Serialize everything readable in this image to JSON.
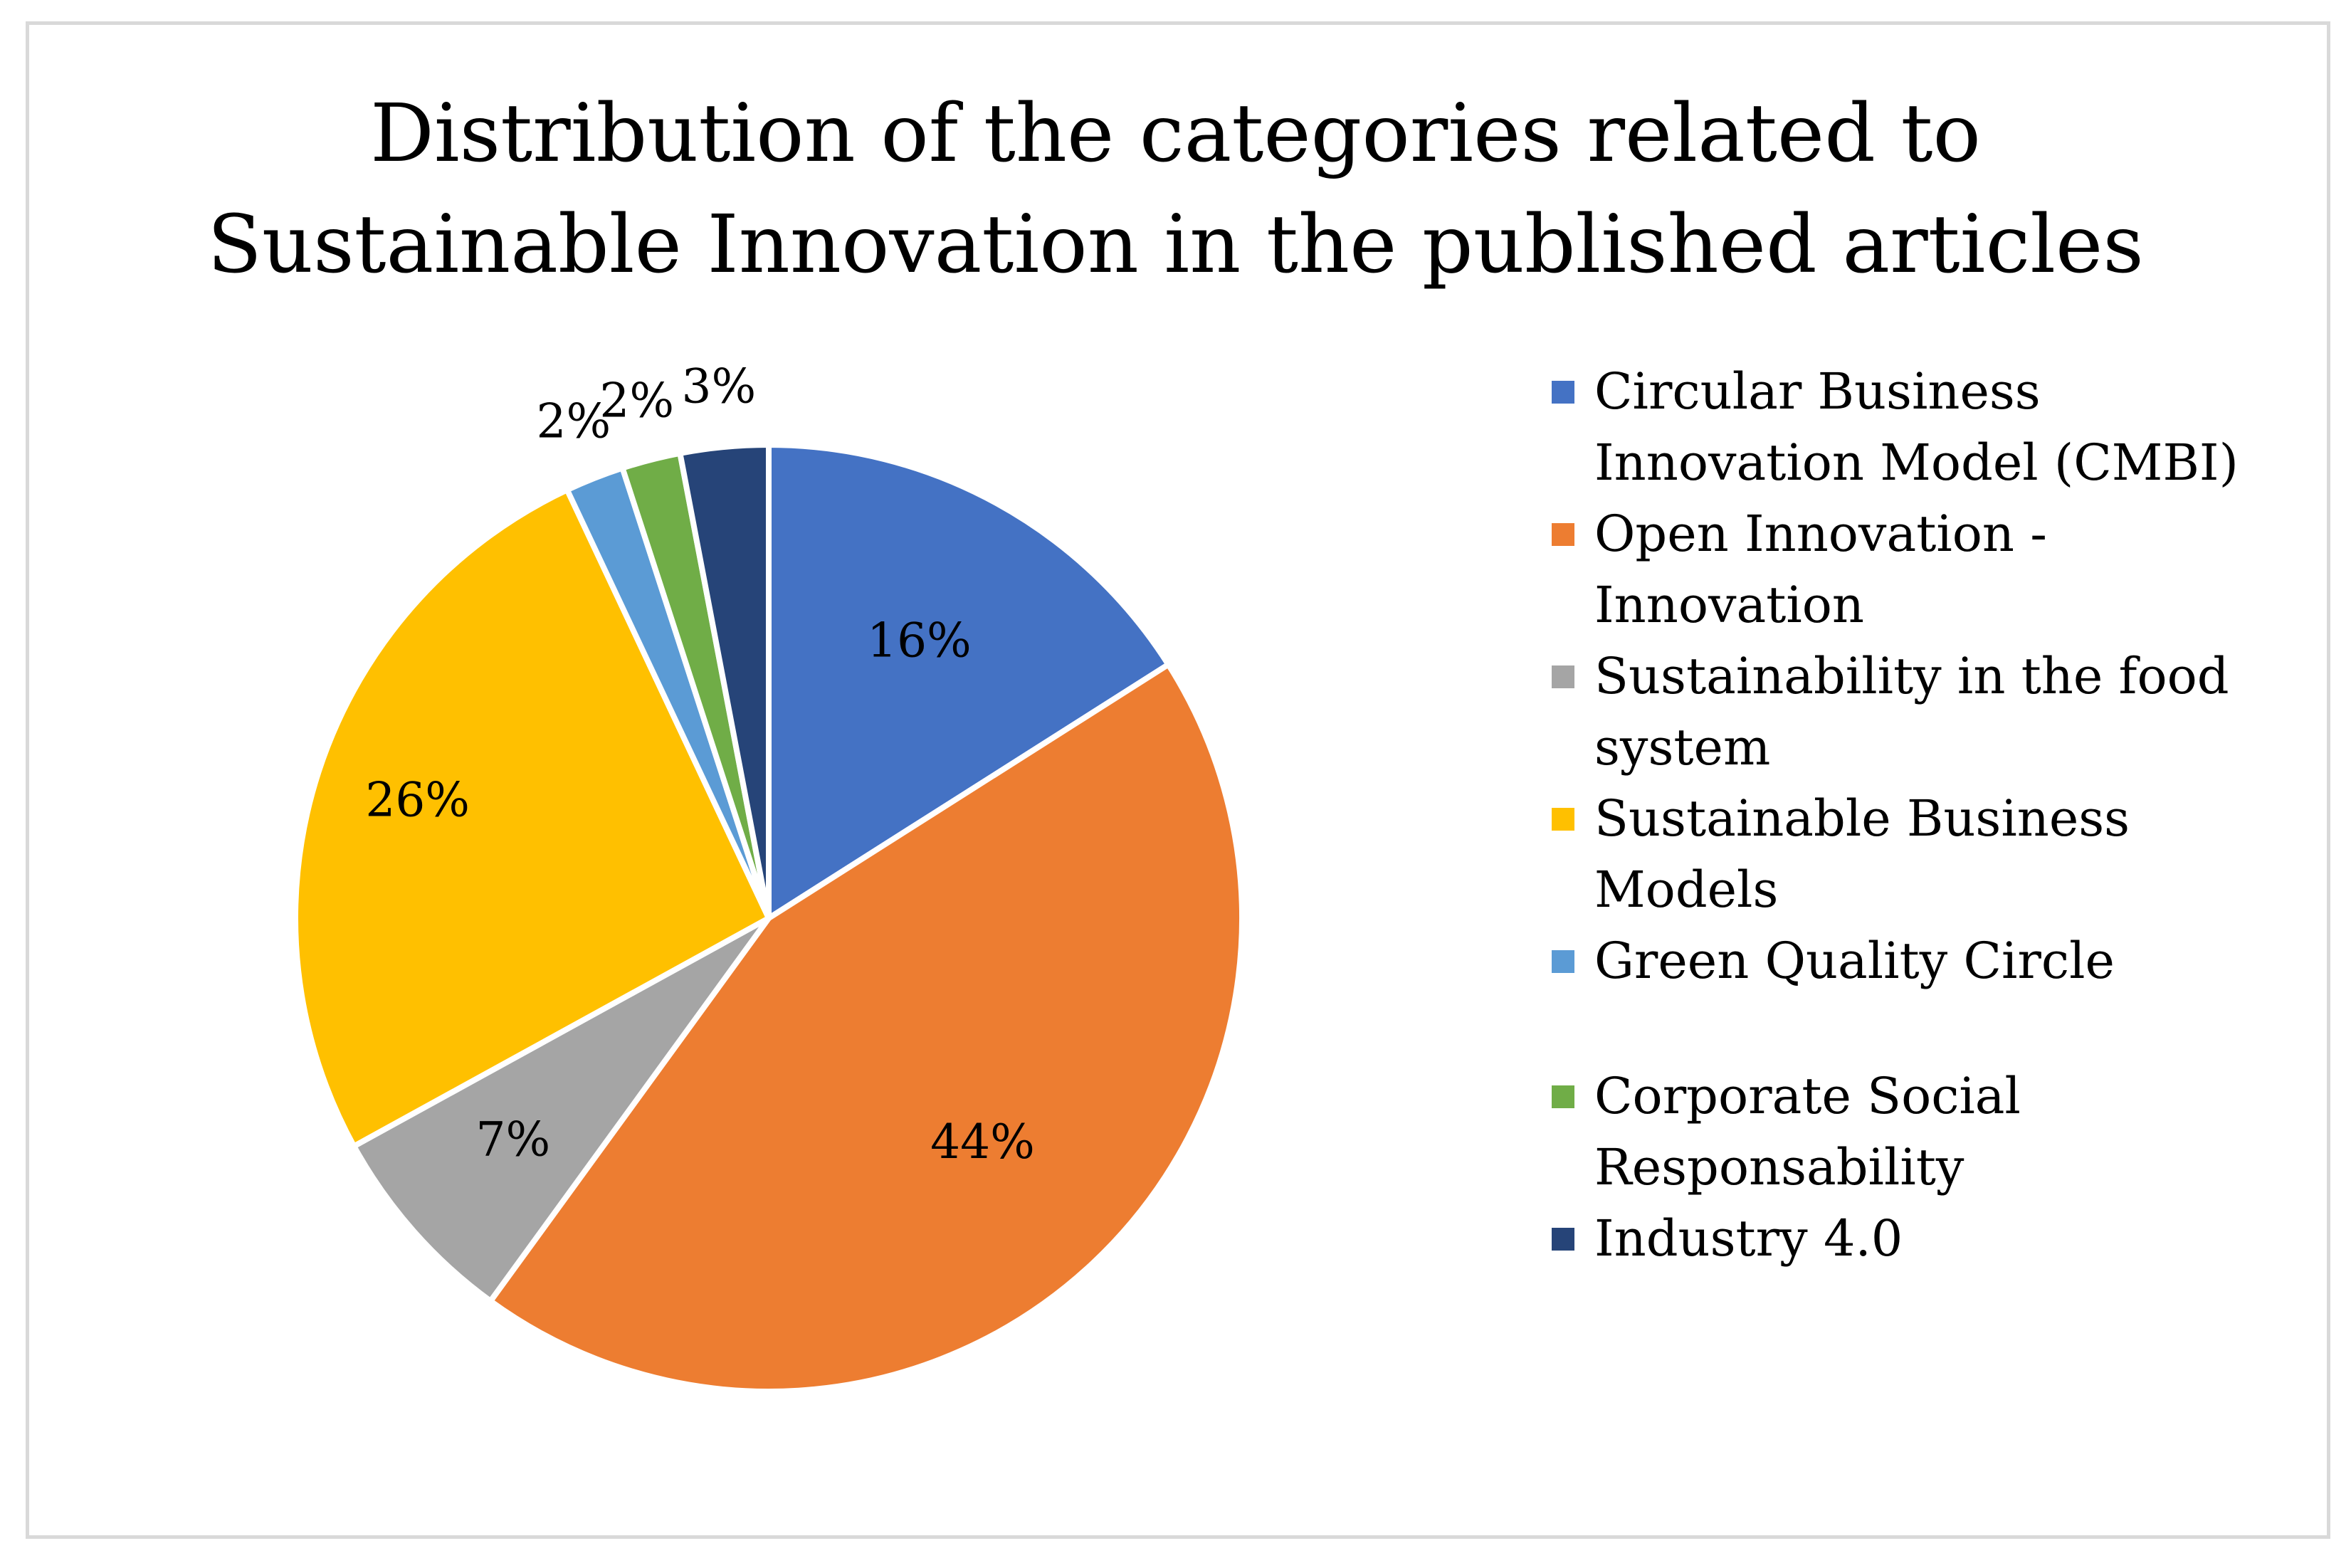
{
  "chart_data": {
    "type": "pie",
    "title_lines": [
      "Distribution of the categories related to",
      "Sustainable Innovation in the published articles"
    ],
    "categories": [
      "Circular Business Innovation Model (CMBI)",
      "Open Innovation - Innovation",
      "Sustainability in the food system",
      "Sustainable Business Models",
      "Green Quality Circle",
      "Corporate Social Responsability",
      "Industry 4.0"
    ],
    "legend_lines": [
      [
        "Circular Business",
        "Innovation Model (CMBI)"
      ],
      [
        "Open Innovation -",
        "Innovation"
      ],
      [
        "Sustainability in the food",
        "system"
      ],
      [
        "Sustainable Business",
        "Models"
      ],
      [
        "Green Quality Circle"
      ],
      [
        "Corporate Social",
        "Responsability"
      ],
      [
        "Industry 4.0"
      ]
    ],
    "values": [
      16,
      44,
      7,
      26,
      2,
      2,
      3
    ],
    "labels": [
      "16%",
      "44%",
      "7%",
      "26%",
      "2%",
      "2%",
      "3%"
    ],
    "colors": [
      "#4472C4",
      "#ED7D31",
      "#A5A5A5",
      "#FFC000",
      "#5B9BD5",
      "#70AD47",
      "#264478"
    ],
    "start_angle_deg": 0,
    "direction": "clockwise",
    "legend_position": "right"
  }
}
